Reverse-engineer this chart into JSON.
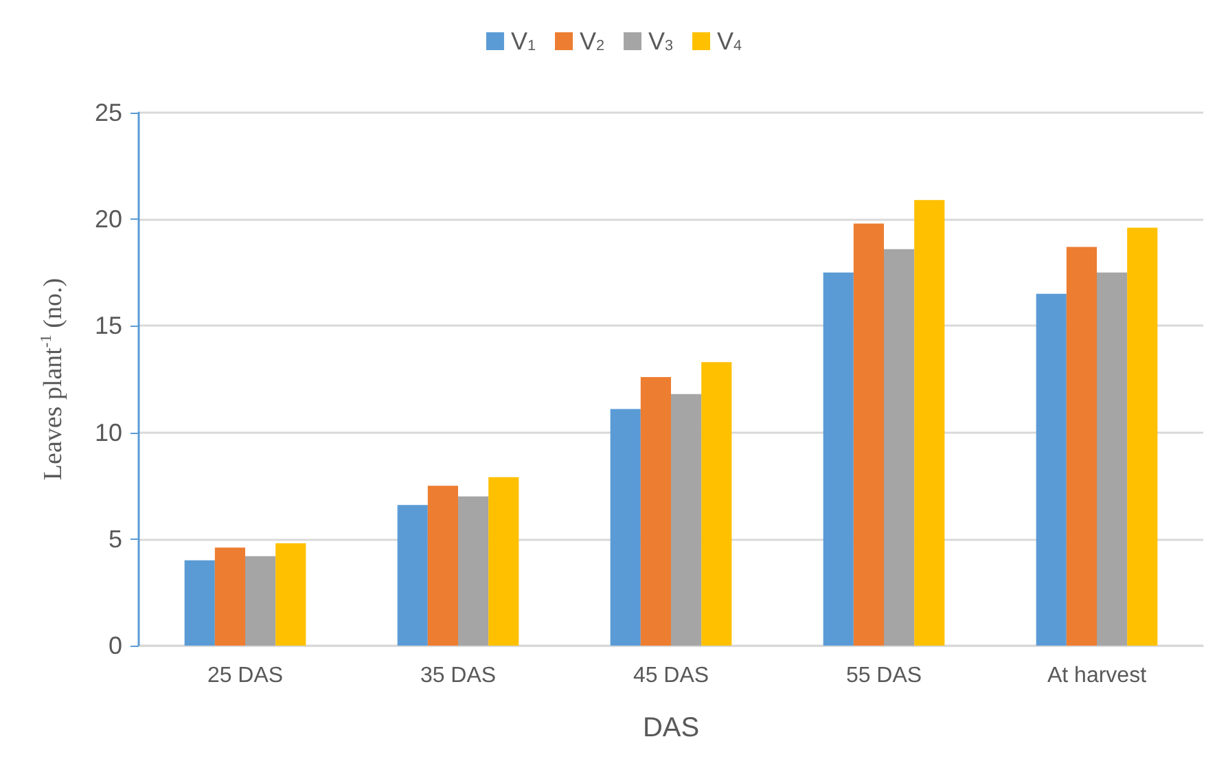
{
  "chart_data": {
    "type": "bar",
    "xlabel": "DAS",
    "ylabel": "Leaves plant$^{-1}$ (no.)",
    "categories": [
      "25 DAS",
      "35 DAS",
      "45 DAS",
      "55 DAS",
      "At harvest"
    ],
    "series": [
      {
        "name": "V$_{1}$",
        "color": "#5b9bd5",
        "values": [
          4.0,
          6.6,
          11.1,
          17.5,
          16.5
        ]
      },
      {
        "name": "V$_{2}$",
        "color": "#ed7d31",
        "values": [
          4.6,
          7.5,
          12.6,
          19.8,
          18.7
        ]
      },
      {
        "name": "V$_{3}$",
        "color": "#a5a5a5",
        "values": [
          4.2,
          7.0,
          11.8,
          18.6,
          17.5
        ]
      },
      {
        "name": "V$_{4}$",
        "color": "#ffc000",
        "values": [
          4.8,
          7.9,
          13.3,
          20.9,
          19.6
        ]
      }
    ],
    "ylim": [
      0,
      25
    ],
    "yticks": [
      0,
      5,
      10,
      15,
      20,
      25
    ],
    "grid": "y",
    "legend": "top"
  }
}
